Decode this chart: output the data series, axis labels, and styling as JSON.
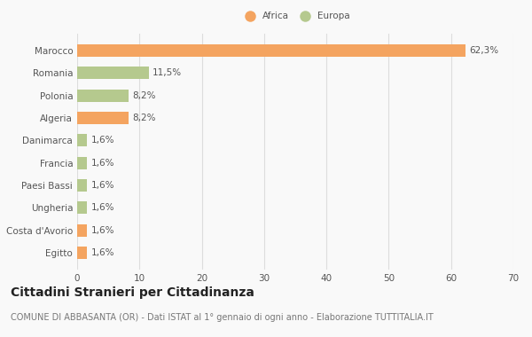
{
  "categories": [
    "Egitto",
    "Costa d'Avorio",
    "Ungheria",
    "Paesi Bassi",
    "Francia",
    "Danimarca",
    "Algeria",
    "Polonia",
    "Romania",
    "Marocco"
  ],
  "values": [
    1.6,
    1.6,
    1.6,
    1.6,
    1.6,
    1.6,
    8.2,
    8.2,
    11.5,
    62.3
  ],
  "colors": [
    "#f4a460",
    "#f4a460",
    "#b5c98e",
    "#b5c98e",
    "#b5c98e",
    "#b5c98e",
    "#f4a460",
    "#b5c98e",
    "#b5c98e",
    "#f4a460"
  ],
  "labels": [
    "1,6%",
    "1,6%",
    "1,6%",
    "1,6%",
    "1,6%",
    "1,6%",
    "8,2%",
    "8,2%",
    "11,5%",
    "62,3%"
  ],
  "legend_africa_color": "#f4a460",
  "legend_europa_color": "#b5c98e",
  "xlim": [
    0,
    70
  ],
  "xticks": [
    0,
    10,
    20,
    30,
    40,
    50,
    60,
    70
  ],
  "title": "Cittadini Stranieri per Cittadinanza",
  "subtitle": "COMUNE DI ABBASANTA (OR) - Dati ISTAT al 1° gennaio di ogni anno - Elaborazione TUTTITALIA.IT",
  "background_color": "#f9f9f9",
  "grid_color": "#dddddd",
  "bar_height": 0.55,
  "label_fontsize": 7.5,
  "tick_fontsize": 7.5,
  "title_fontsize": 10,
  "subtitle_fontsize": 7
}
